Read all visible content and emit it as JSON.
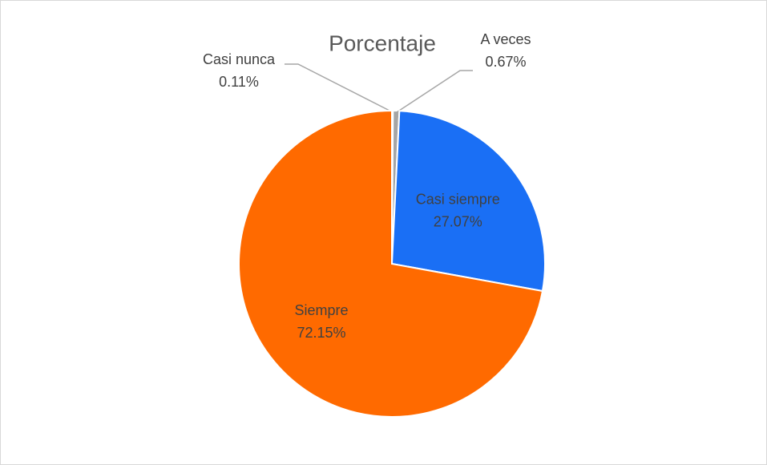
{
  "chart_data": {
    "type": "pie",
    "title": "Porcentaje",
    "categories": [
      "Casi nunca",
      "A veces",
      "Casi siempre",
      "Siempre"
    ],
    "values": [
      0.11,
      0.67,
      27.07,
      72.15
    ],
    "value_labels": [
      "0.11%",
      "0.67%",
      "27.07%",
      "72.15%"
    ],
    "colors": [
      "#7f7f7f",
      "#a5a5a5",
      "#1a6ff5",
      "#ff6a00"
    ]
  }
}
